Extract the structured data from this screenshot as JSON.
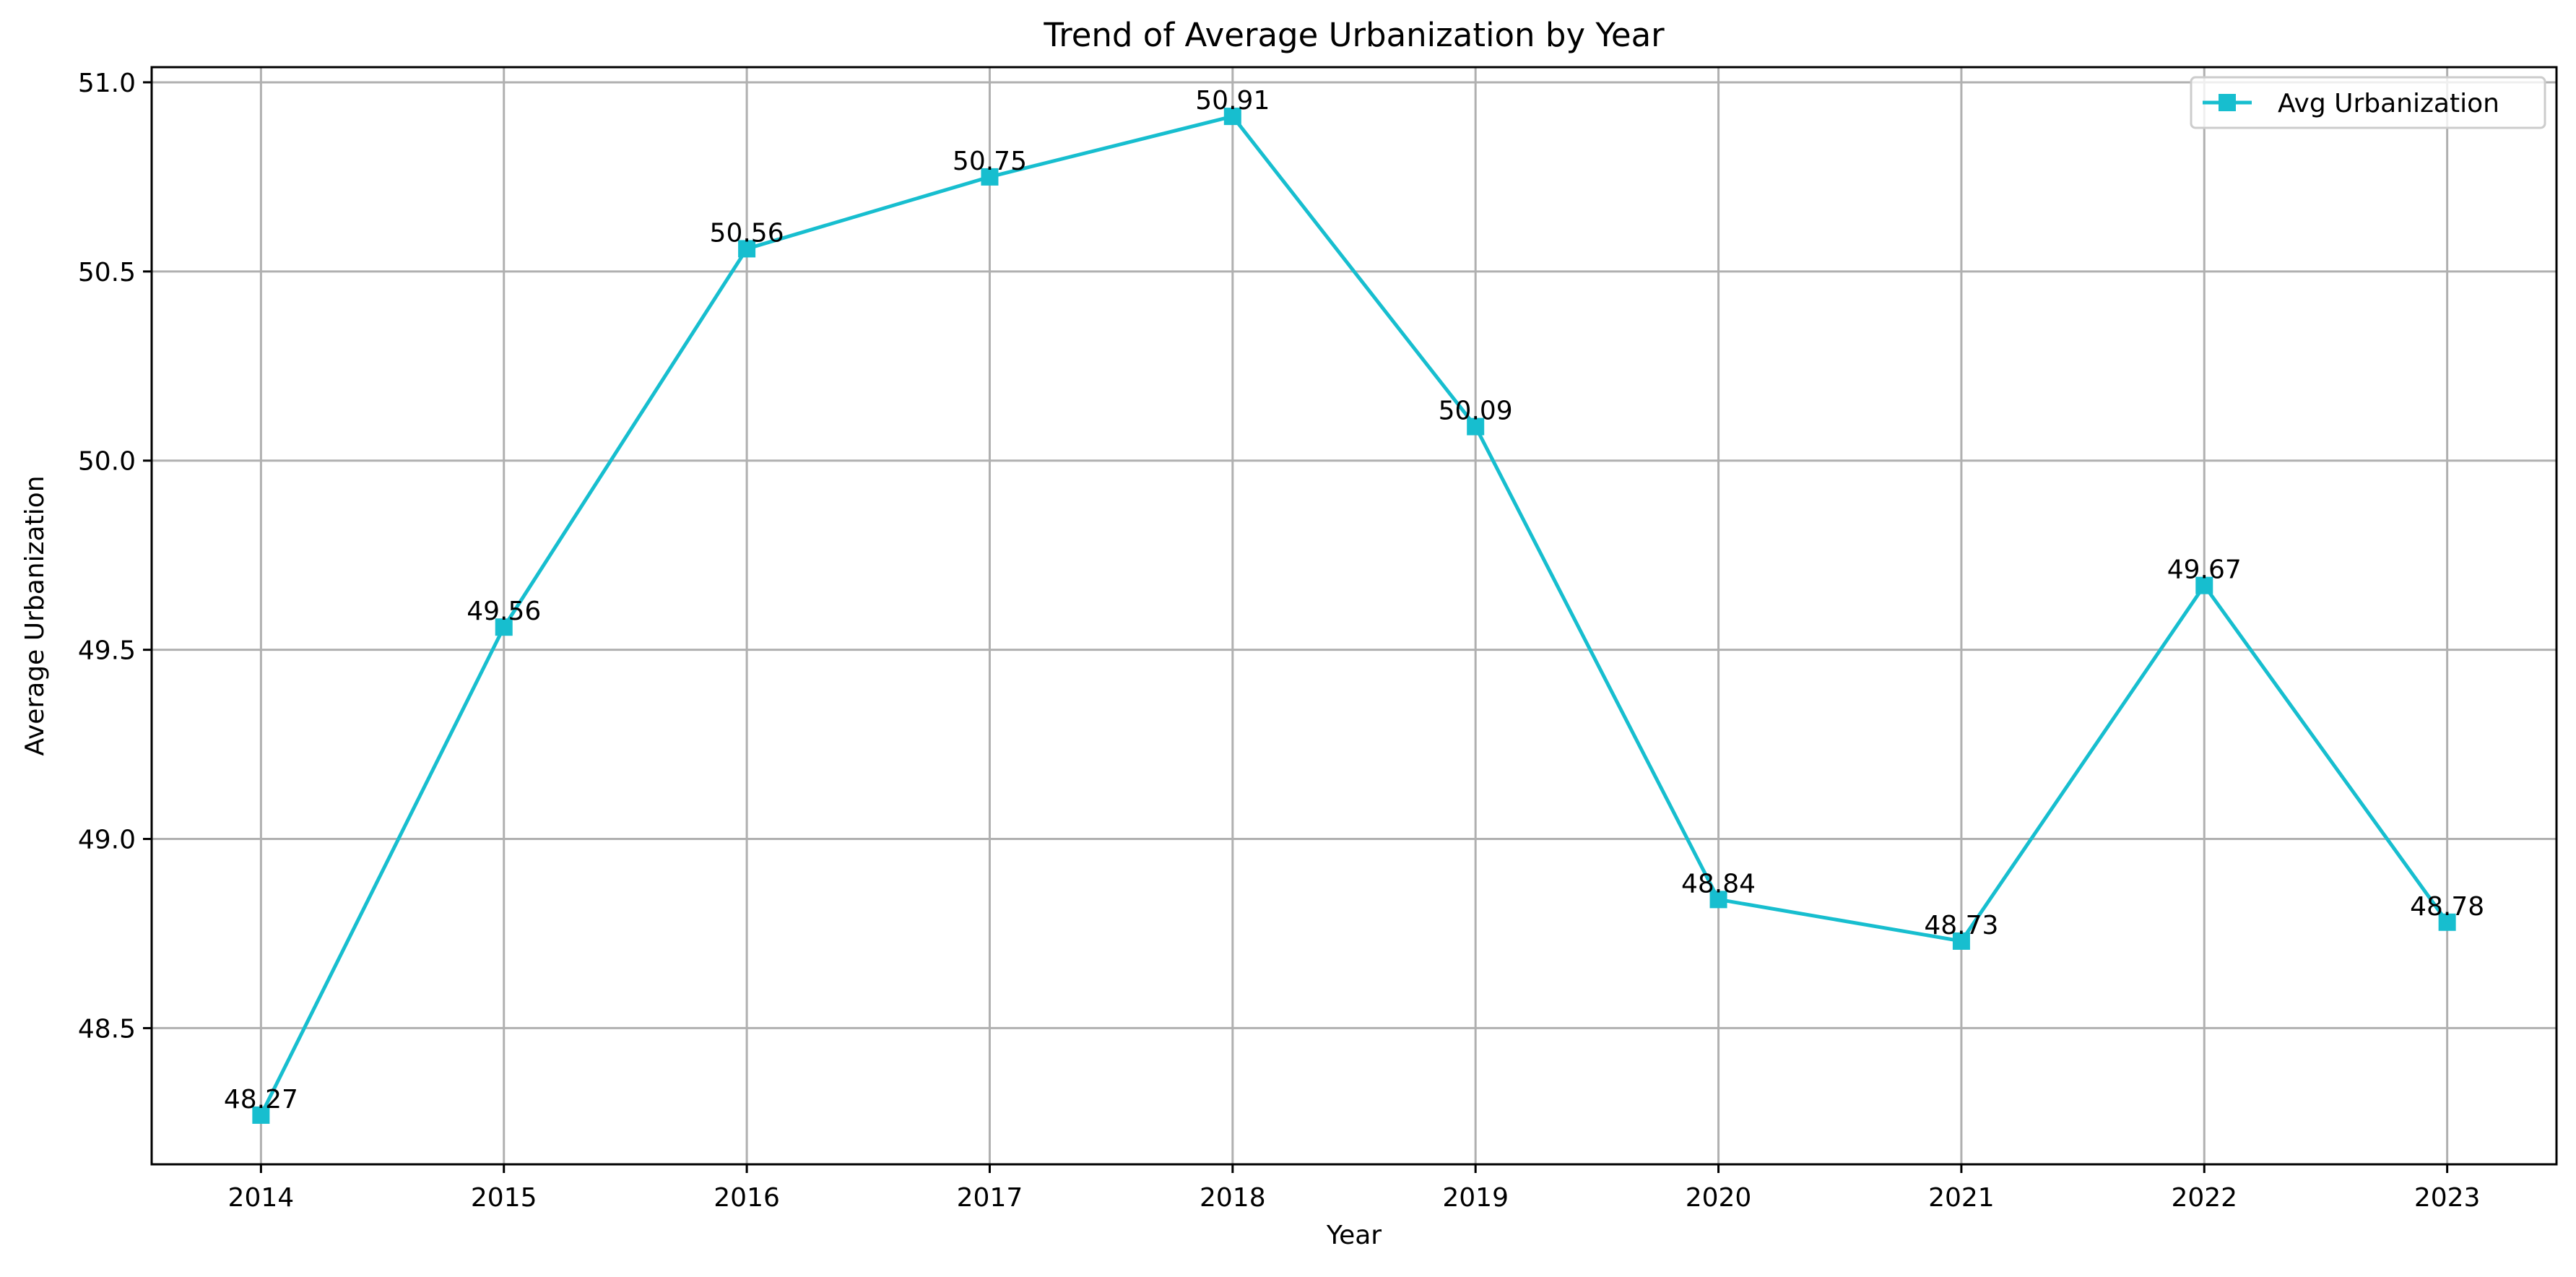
{
  "chart_data": {
    "type": "line",
    "title": "Trend of Average Urbanization by Year",
    "xlabel": "Year",
    "ylabel": "Average Urbanization",
    "categories": [
      "2014",
      "2015",
      "2016",
      "2017",
      "2018",
      "2019",
      "2020",
      "2021",
      "2022",
      "2023"
    ],
    "series": [
      {
        "name": "Avg Urbanization",
        "values": [
          48.27,
          49.56,
          50.56,
          50.75,
          50.91,
          50.09,
          48.84,
          48.73,
          49.67,
          48.78
        ],
        "value_labels": [
          "48.27",
          "49.56",
          "50.56",
          "50.75",
          "50.91",
          "50.09",
          "48.84",
          "48.73",
          "49.67",
          "48.78"
        ],
        "color": "#17becf",
        "marker": "square"
      }
    ],
    "yticks": [
      48.5,
      49.0,
      49.5,
      50.0,
      50.5,
      51.0
    ],
    "ytick_labels": [
      "48.5",
      "49.0",
      "49.5",
      "50.0",
      "50.5",
      "51.0"
    ],
    "ylim": [
      48.14,
      51.04
    ],
    "grid": true,
    "legend": "top-right"
  }
}
